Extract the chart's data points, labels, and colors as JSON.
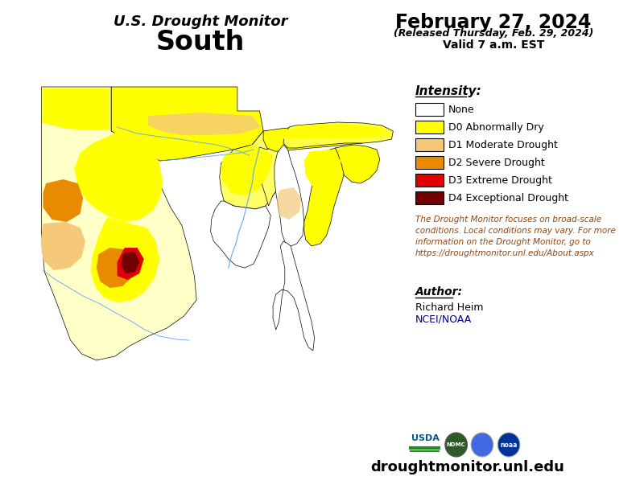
{
  "title_line1": "U.S. Drought Monitor",
  "title_line2": "South",
  "date_line1": "February 27, 2024",
  "date_line2": "(Released Thursday, Feb. 29, 2024)",
  "date_line3": "Valid 7 a.m. EST",
  "legend_title": "Intensity:",
  "legend_items": [
    {
      "label": "None",
      "color": "#FFFFFF"
    },
    {
      "label": "D0 Abnormally Dry",
      "color": "#FFFF00"
    },
    {
      "label": "D1 Moderate Drought",
      "color": "#F5C87A"
    },
    {
      "label": "D2 Severe Drought",
      "color": "#E88B00"
    },
    {
      "label": "D3 Extreme Drought",
      "color": "#E00000"
    },
    {
      "label": "D4 Exceptional Drought",
      "color": "#730000"
    }
  ],
  "disclaimer_text": "The Drought Monitor focuses on broad-scale\nconditions. Local conditions may vary. For more\ninformation on the Drought Monitor, go to\nhttps://droughtmonitor.unl.edu/About.aspx",
  "author_title": "Author:",
  "author_name": "Richard Heim",
  "author_org": "NCEI/NOAA",
  "website": "droughtmonitor.unl.edu",
  "bg_color": "#FFFFFF",
  "text_color": "#000000",
  "disclaimer_color": "#8B4513",
  "author_color": "#000080"
}
